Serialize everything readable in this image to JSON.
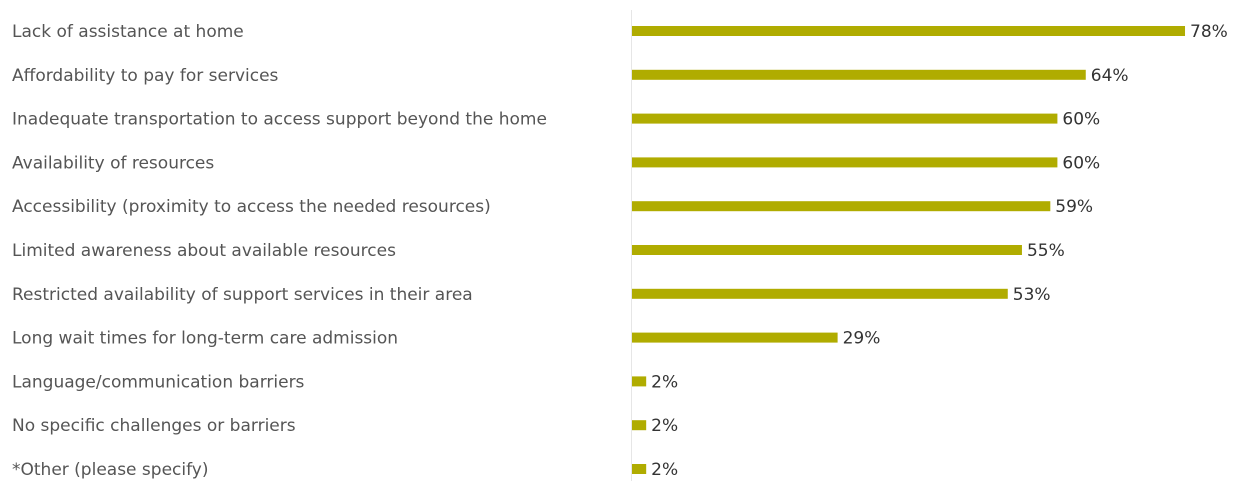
{
  "chart_data": {
    "type": "bar",
    "orientation": "horizontal",
    "categories": [
      "Lack of assistance at home",
      "Affordability to pay for services",
      "Inadequate transportation to access support beyond the home",
      "Availability of resources",
      "Accessibility (proximity to access the needed resources)",
      "Limited awareness about available resources",
      "Restricted availability of support services in their area",
      "Long wait times for long-term care admission",
      "Language/communication barriers",
      "No specific challenges or barriers",
      "*Other (please specify)"
    ],
    "values": [
      78,
      64,
      60,
      60,
      59,
      55,
      53,
      29,
      2,
      2,
      2
    ],
    "value_labels": [
      "78%",
      "64%",
      "60%",
      "60%",
      "59%",
      "55%",
      "53%",
      "29%",
      "2%",
      "2%",
      "2%"
    ],
    "color": "#b0ac00"
  }
}
